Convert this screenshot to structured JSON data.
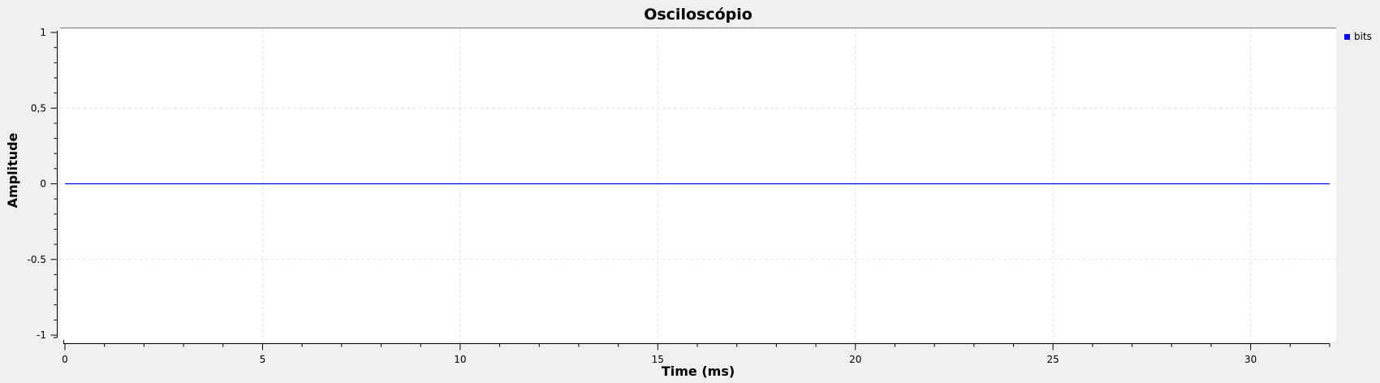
{
  "window": {
    "background": "#efefef"
  },
  "chart_data": {
    "type": "line",
    "title": "Osciloscópio",
    "xlabel": "Time (ms)",
    "ylabel": "Amplitude",
    "xlim": [
      0,
      32
    ],
    "ylim": [
      -1,
      1
    ],
    "x_ticks": [
      0,
      5,
      10,
      15,
      20,
      25,
      30
    ],
    "x_tick_labels": [
      "0",
      "5",
      "10",
      "15",
      "20",
      "25",
      "30"
    ],
    "y_ticks": [
      1,
      0.5,
      0,
      -0.5,
      -1
    ],
    "y_tick_labels": [
      "1",
      "0,5",
      "0",
      "-0.5",
      "-1"
    ],
    "grid": true,
    "legend_position": "top-right",
    "series": [
      {
        "name": "bits",
        "color": "#0000ff",
        "x": [
          0,
          32
        ],
        "y": [
          0,
          0
        ]
      }
    ]
  }
}
